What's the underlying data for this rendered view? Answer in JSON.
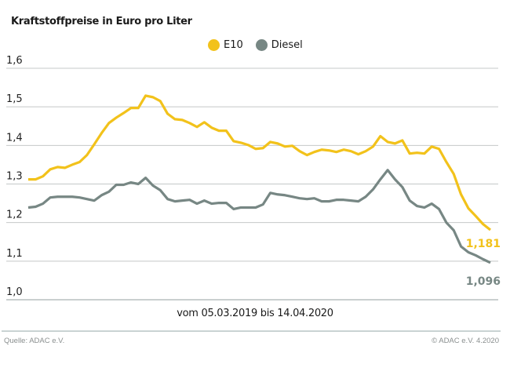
{
  "chart_data": {
    "type": "line",
    "title": "Kraftstoffpreise in Euro pro Liter",
    "xlabel": "vom 05.03.2019 bis 14.04.2020",
    "x_range": [
      "05.03.2019",
      "14.04.2020"
    ],
    "ylabel": "",
    "ylim": [
      1.0,
      1.6
    ],
    "yticks": [
      "1,0",
      "1,1",
      "1,2",
      "1,3",
      "1,4",
      "1,5",
      "1,6"
    ],
    "ytick_values": [
      1.0,
      1.1,
      1.2,
      1.3,
      1.4,
      1.5,
      1.6
    ],
    "grid": true,
    "legend_placement": "top-center",
    "series": [
      {
        "name": "E10",
        "color": "#f2c21b",
        "end_label": "1,181",
        "values": [
          1.312,
          1.312,
          1.32,
          1.338,
          1.344,
          1.342,
          1.35,
          1.357,
          1.375,
          1.403,
          1.432,
          1.458,
          1.472,
          1.484,
          1.497,
          1.497,
          1.529,
          1.525,
          1.515,
          1.482,
          1.468,
          1.466,
          1.458,
          1.448,
          1.46,
          1.446,
          1.438,
          1.438,
          1.411,
          1.407,
          1.401,
          1.391,
          1.393,
          1.409,
          1.405,
          1.397,
          1.399,
          1.385,
          1.375,
          1.383,
          1.389,
          1.387,
          1.383,
          1.389,
          1.385,
          1.377,
          1.385,
          1.397,
          1.424,
          1.409,
          1.405,
          1.413,
          1.379,
          1.381,
          1.379,
          1.397,
          1.391,
          1.357,
          1.326,
          1.273,
          1.237,
          1.217,
          1.196,
          1.181
        ]
      },
      {
        "name": "Diesel",
        "color": "#778784",
        "end_label": "1,096",
        "values": [
          1.239,
          1.241,
          1.249,
          1.265,
          1.267,
          1.267,
          1.267,
          1.265,
          1.261,
          1.257,
          1.271,
          1.28,
          1.298,
          1.298,
          1.304,
          1.3,
          1.316,
          1.296,
          1.284,
          1.261,
          1.255,
          1.257,
          1.259,
          1.249,
          1.257,
          1.249,
          1.251,
          1.251,
          1.235,
          1.239,
          1.239,
          1.239,
          1.247,
          1.277,
          1.273,
          1.271,
          1.267,
          1.263,
          1.261,
          1.263,
          1.255,
          1.255,
          1.259,
          1.259,
          1.257,
          1.255,
          1.267,
          1.286,
          1.312,
          1.336,
          1.312,
          1.292,
          1.257,
          1.243,
          1.239,
          1.249,
          1.235,
          1.2,
          1.18,
          1.138,
          1.123,
          1.115,
          1.105,
          1.096
        ]
      }
    ]
  },
  "footer": {
    "source": "Quelle: ADAC e.V.",
    "copyright": "© ADAC e.V. 4.2020"
  }
}
